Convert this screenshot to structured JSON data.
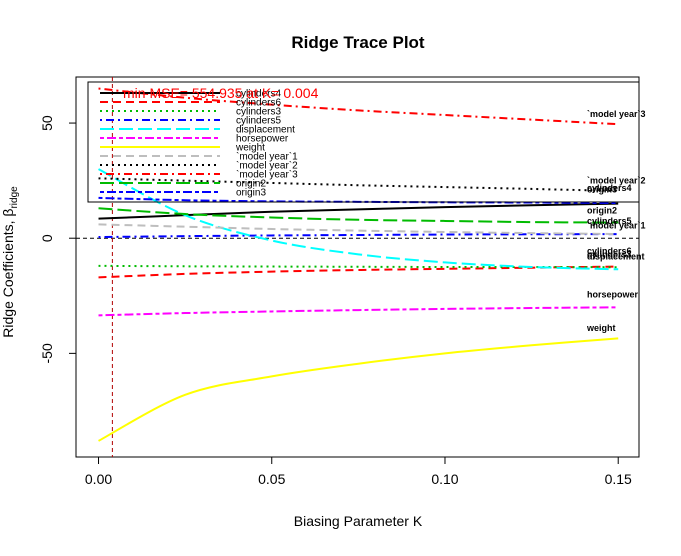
{
  "chart_data": {
    "type": "line",
    "title": "Ridge Trace Plot",
    "xlabel": "Biasing Parameter K",
    "ylabel": "Ridge Coefficients, β",
    "ylabel_sub": "ridge",
    "xlim": [
      -0.0065,
      0.156
    ],
    "ylim": [
      -95,
      70
    ],
    "xticks": [
      0.0,
      0.05,
      0.1,
      0.15
    ],
    "xtick_labels": [
      "0.00",
      "0.05",
      "0.10",
      "0.15"
    ],
    "yticks": [
      -50,
      0,
      50
    ],
    "ytick_labels": [
      "-50",
      "0",
      "50"
    ],
    "zero_line": 0,
    "min_mse_k": 0.004,
    "annotation": "min MSE= 554.935 at K= 0.004",
    "annotation_color": "#ff0000",
    "legend_position": "top-left",
    "x": [
      0.0,
      0.025,
      0.05,
      0.075,
      0.1,
      0.125,
      0.15
    ],
    "series": [
      {
        "name": "cylinders4",
        "color": "#000000",
        "dash": "solid",
        "values": [
          8.5,
          10.0,
          11.5,
          12.5,
          13.5,
          14.3,
          15.0
        ]
      },
      {
        "name": "cylinders6",
        "color": "#ff0000",
        "dash": "dash",
        "values": [
          -17.0,
          -15.5,
          -14.5,
          -13.8,
          -13.3,
          -12.8,
          -12.3
        ]
      },
      {
        "name": "cylinders3",
        "color": "#00bb00",
        "dash": "dot",
        "values": [
          -12.0,
          -12.2,
          -12.3,
          -12.4,
          -12.5,
          -12.5,
          -12.6
        ]
      },
      {
        "name": "cylinders5",
        "color": "#0000ff",
        "dash": "dotdash",
        "values": [
          0.5,
          0.9,
          1.2,
          1.4,
          1.6,
          1.7,
          1.8
        ]
      },
      {
        "name": "displacement",
        "color": "#00ffff",
        "dash": "longdash",
        "values": [
          30.0,
          10.0,
          -1.0,
          -7.0,
          -10.5,
          -12.5,
          -13.5
        ]
      },
      {
        "name": "horsepower",
        "color": "#ff00ff",
        "dash": "twodash",
        "values": [
          -33.5,
          -32.5,
          -31.8,
          -31.2,
          -30.7,
          -30.3,
          -30.0
        ]
      },
      {
        "name": "weight",
        "color": "#ffff00",
        "dash": "solid",
        "values": [
          -88.0,
          -68.0,
          -60.0,
          -54.5,
          -50.0,
          -46.5,
          -43.5
        ]
      },
      {
        "name": "`model year`1",
        "color": "#bebebe",
        "dash": "dash",
        "values": [
          6.0,
          5.0,
          4.0,
          3.3,
          2.7,
          2.2,
          1.8
        ]
      },
      {
        "name": "`model year`2",
        "color": "#000000",
        "dash": "dot",
        "values": [
          26.0,
          25.0,
          24.0,
          23.0,
          22.2,
          21.4,
          20.5
        ]
      },
      {
        "name": "`model year`3",
        "color": "#ff0000",
        "dash": "dotdash",
        "values": [
          65.0,
          61.0,
          58.0,
          55.5,
          53.5,
          51.5,
          49.5
        ]
      },
      {
        "name": "origin2",
        "color": "#00bb00",
        "dash": "longdash",
        "values": [
          13.0,
          10.5,
          9.0,
          8.0,
          7.5,
          7.0,
          6.8
        ]
      },
      {
        "name": "origin3",
        "color": "#0000ff",
        "dash": "twodash",
        "values": [
          17.5,
          16.5,
          16.0,
          15.8,
          15.6,
          15.5,
          15.3
        ]
      }
    ],
    "end_labels": [
      {
        "text": "`model year`3",
        "y": 54
      },
      {
        "text": "`model year`2",
        "y": 25
      },
      {
        "text": "cylinders4",
        "y": 21.8
      },
      {
        "text": "origin3",
        "y": 21.2
      },
      {
        "text": "origin2",
        "y": 12.0
      },
      {
        "text": "cylinders5",
        "y": 7.5
      },
      {
        "text": "`model year`1",
        "y": 5.5
      },
      {
        "text": "cylinders6",
        "y": -5.5
      },
      {
        "text": "displacement",
        "y": -8.0
      },
      {
        "text": "cylinders3",
        "y": -7.0
      },
      {
        "text": "horsepower",
        "y": -24.5
      },
      {
        "text": "weight",
        "y": -39.0
      }
    ]
  }
}
